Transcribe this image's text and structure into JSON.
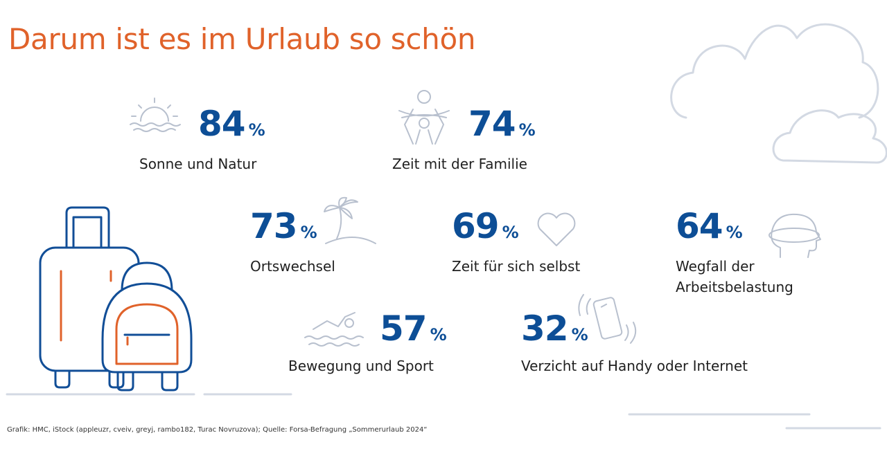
{
  "title": "Darum ist es im Urlaub so schön",
  "colors": {
    "accent": "#E0622A",
    "value": "#0D4E96",
    "icon": "#B8C0CE",
    "suitcase_blue": "#114E97",
    "suitcase_orange": "#E0622A"
  },
  "chart_data": {
    "type": "infographic",
    "title": "Darum ist es im Urlaub so schön",
    "unit": "%",
    "items": [
      {
        "label": "Sonne und Natur",
        "value": 84,
        "icon": "sun-icon"
      },
      {
        "label": "Zeit mit der Familie",
        "value": 74,
        "icon": "family-icon"
      },
      {
        "label": "Ortswechsel",
        "value": 73,
        "icon": "palm-island-icon"
      },
      {
        "label": "Zeit für sich selbst",
        "value": 69,
        "icon": "heart-icon"
      },
      {
        "label": "Wegfall der Arbeitsbelastung",
        "value": 64,
        "icon": "head-relax-icon"
      },
      {
        "label": "Bewegung und Sport",
        "value": 57,
        "icon": "swimmer-icon"
      },
      {
        "label": "Verzicht auf Handy oder Internet",
        "value": 32,
        "icon": "phone-vibrate-icon"
      }
    ]
  },
  "source": "Grafik: HMC, iStock (appleuzr, cveiv, greyj, rambo182, Turac Novruzova); Quelle: Forsa-Befragung „Sommerurlaub 2024“"
}
